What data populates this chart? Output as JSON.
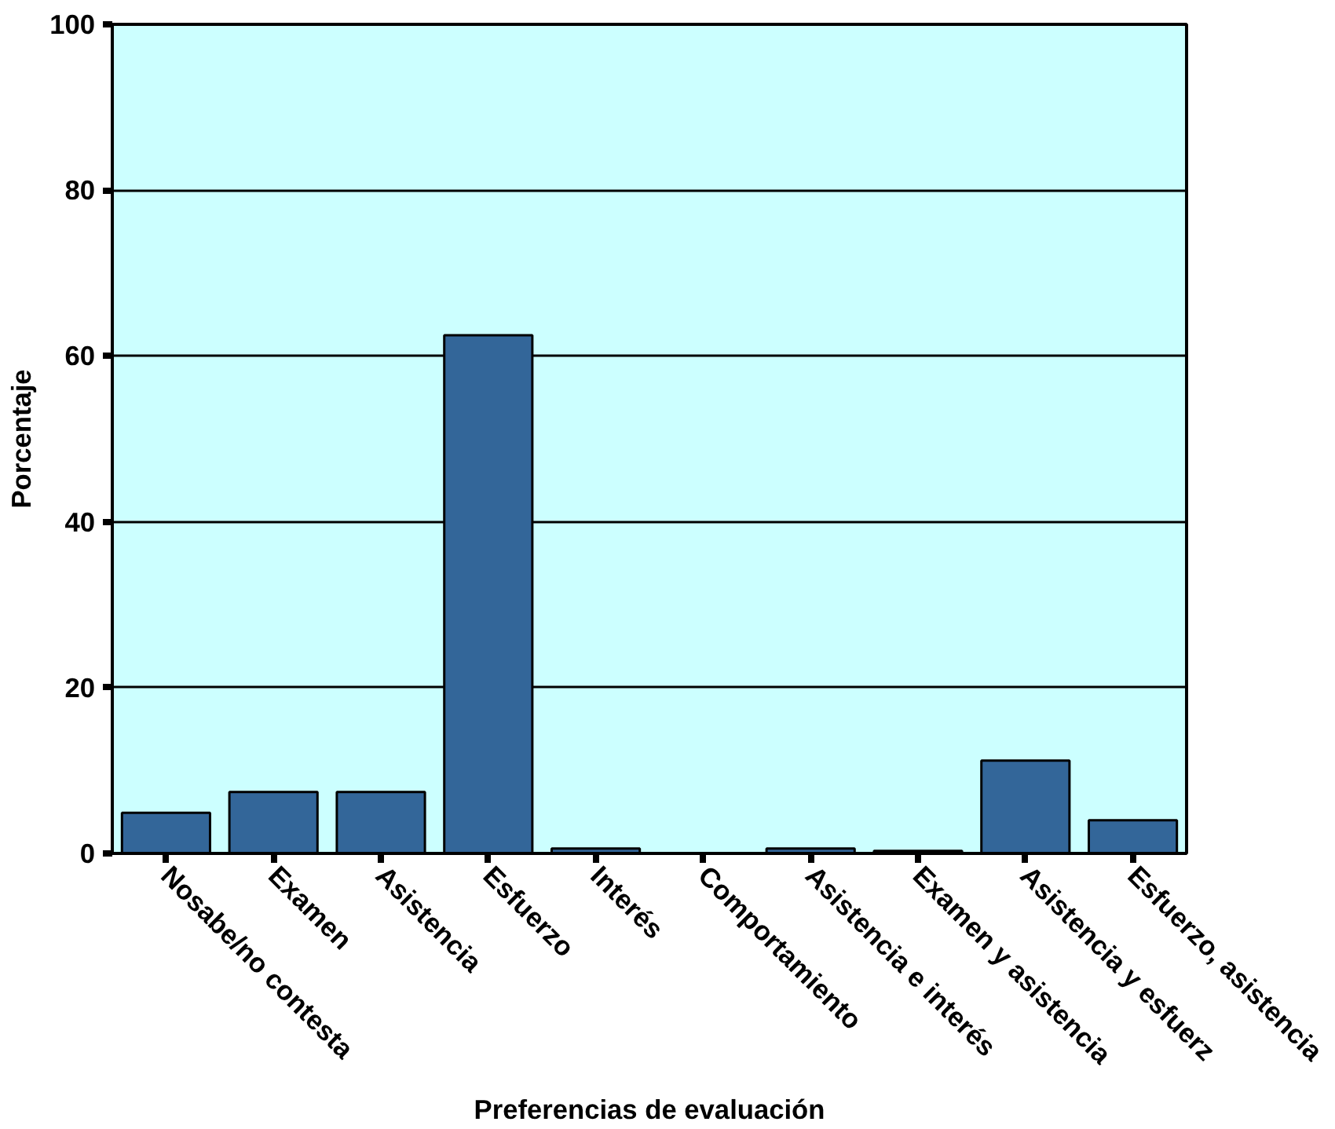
{
  "chart_data": {
    "type": "bar",
    "xlabel": "Preferencias de evaluación",
    "ylabel": "Porcentaje",
    "categories": [
      "Nosabe/no contesta",
      "Examen",
      "Asistencia",
      "Esfuerzo",
      "Interés",
      "Comportamiento",
      "Asistencia e interés",
      "Examen y asistencia",
      "Asistencia y esfuerz",
      "Esfuerzo, asistencia"
    ],
    "values": [
      4.9,
      7.4,
      7.4,
      62.5,
      0.6,
      0,
      0.6,
      0.3,
      11.2,
      4.0
    ],
    "color": "#336699",
    "ylim": [
      0,
      100
    ],
    "yticks": [
      0,
      20,
      40,
      60,
      80,
      100
    ],
    "grid": "y"
  }
}
